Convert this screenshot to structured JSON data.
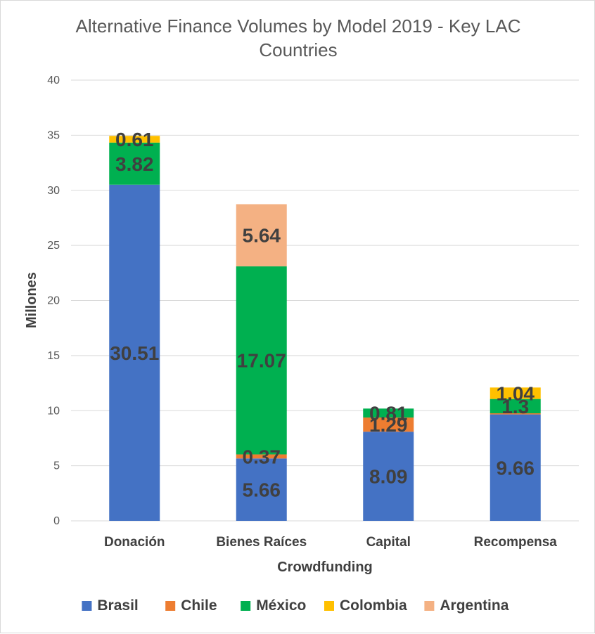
{
  "chart_data": {
    "type": "bar",
    "stacked": true,
    "title_lines": [
      "Alternative Finance Volumes by Model 2019 - Key LAC",
      "Countries"
    ],
    "xlabel": "Crowdfunding",
    "ylabel": "Millones",
    "ylim": [
      0,
      40
    ],
    "yticks": [
      0,
      5,
      10,
      15,
      20,
      25,
      30,
      35,
      40
    ],
    "grid": true,
    "legend_position": "bottom",
    "categories": [
      "Donación",
      "Bienes Raíces",
      "Capital",
      "Recompensa"
    ],
    "series": [
      {
        "name": "Brasil",
        "color": "#4472C4",
        "values": [
          30.51,
          5.66,
          8.09,
          9.66
        ],
        "labels": [
          "30.51",
          "5.66",
          "8.09",
          "9.66"
        ]
      },
      {
        "name": "Chile",
        "color": "#ED7D31",
        "values": [
          0,
          0.37,
          1.29,
          0.1
        ],
        "labels": [
          "",
          "0.37",
          "1.29",
          ""
        ]
      },
      {
        "name": "México",
        "color": "#00B050",
        "values": [
          3.82,
          17.07,
          0.81,
          1.3
        ],
        "labels": [
          "3.82",
          "17.07",
          "0.81",
          "1.3"
        ]
      },
      {
        "name": "Colombia",
        "color": "#FFC000",
        "values": [
          0.61,
          0,
          0,
          1.04
        ],
        "labels": [
          "0.61",
          "",
          "",
          "1.04"
        ]
      },
      {
        "name": "Argentina",
        "color": "#F4B183",
        "values": [
          0,
          5.64,
          0,
          0
        ],
        "labels": [
          "",
          "5.64",
          "",
          ""
        ]
      }
    ]
  }
}
